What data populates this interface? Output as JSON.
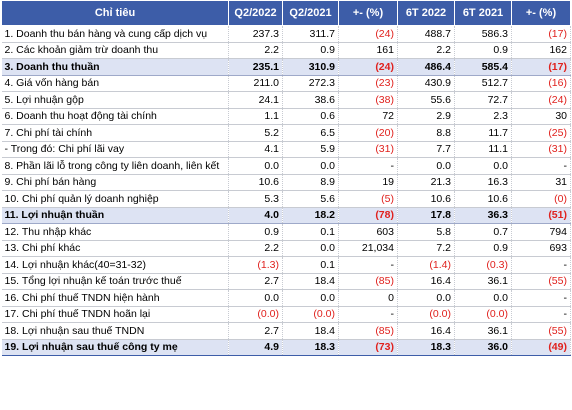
{
  "header": [
    "Chỉ tiêu",
    "Q2/2022",
    "Q2/2021",
    "+- (%)",
    "6T 2022",
    "6T 2021",
    "+- (%)"
  ],
  "rows": [
    {
      "label": "1. Doanh thu bán hàng và cung cấp dịch vụ",
      "v": [
        "237.3",
        "311.7",
        "(24)",
        "488.7",
        "586.3",
        "(17)"
      ],
      "hl": false
    },
    {
      "label": "2. Các khoản giảm trừ doanh thu",
      "v": [
        "2.2",
        "0.9",
        "161",
        "2.2",
        "0.9",
        "162"
      ],
      "hl": false
    },
    {
      "label": "3. Doanh thu thuần",
      "v": [
        "235.1",
        "310.9",
        "(24)",
        "486.4",
        "585.4",
        "(17)"
      ],
      "hl": true
    },
    {
      "label": "4. Giá vốn hàng bán",
      "v": [
        "211.0",
        "272.3",
        "(23)",
        "430.9",
        "512.7",
        "(16)"
      ],
      "hl": false
    },
    {
      "label": "5. Lợi nhuận gộp",
      "v": [
        "24.1",
        "38.6",
        "(38)",
        "55.6",
        "72.7",
        "(24)"
      ],
      "hl": false
    },
    {
      "label": "6. Doanh thu hoạt động tài chính",
      "v": [
        "1.1",
        "0.6",
        "72",
        "2.9",
        "2.3",
        "30"
      ],
      "hl": false
    },
    {
      "label": "7. Chi phí tài chính",
      "v": [
        "5.2",
        "6.5",
        "(20)",
        "8.8",
        "11.7",
        "(25)"
      ],
      "hl": false
    },
    {
      "label": "- Trong đó: Chi phí lãi vay",
      "v": [
        "4.1",
        "5.9",
        "(31)",
        "7.7",
        "11.1",
        "(31)"
      ],
      "hl": false
    },
    {
      "label": "8. Phần lãi lỗ trong công ty liên doanh, liên kết",
      "v": [
        "0.0",
        "0.0",
        "-",
        "0.0",
        "0.0",
        "-"
      ],
      "hl": false
    },
    {
      "label": "9. Chi phí bán hàng",
      "v": [
        "10.6",
        "8.9",
        "19",
        "21.3",
        "16.3",
        "31"
      ],
      "hl": false
    },
    {
      "label": "10. Chi phí quản lý doanh nghiệp",
      "v": [
        "5.3",
        "5.6",
        "(5)",
        "10.6",
        "10.6",
        "(0)"
      ],
      "hl": false
    },
    {
      "label": "11. Lợi nhuận thuần",
      "v": [
        "4.0",
        "18.2",
        "(78)",
        "17.8",
        "36.3",
        "(51)"
      ],
      "hl": true
    },
    {
      "label": "12. Thu nhập khác",
      "v": [
        "0.9",
        "0.1",
        "603",
        "5.8",
        "0.7",
        "794"
      ],
      "hl": false
    },
    {
      "label": "13. Chi phí khác",
      "v": [
        "2.2",
        "0.0",
        "21,034",
        "7.2",
        "0.9",
        "693"
      ],
      "hl": false
    },
    {
      "label": "14. Lợi nhuận khác(40=31-32)",
      "v": [
        "(1.3)",
        "0.1",
        "-",
        "(1.4)",
        "(0.3)",
        "-"
      ],
      "hl": false
    },
    {
      "label": "15. Tổng lợi nhuận kế toán trước thuế",
      "v": [
        "2.7",
        "18.4",
        "(85)",
        "16.4",
        "36.1",
        "(55)"
      ],
      "hl": false
    },
    {
      "label": "16. Chi phí thuế TNDN hiện hành",
      "v": [
        "0.0",
        "0.0",
        "0",
        "0.0",
        "0.0",
        "-"
      ],
      "hl": false
    },
    {
      "label": "17. Chi phí thuế TNDN hoãn lại",
      "v": [
        "(0.0)",
        "(0.0)",
        "-",
        "(0.0)",
        "(0.0)",
        "-"
      ],
      "hl": false
    },
    {
      "label": "18. Lợi nhuận sau thuế TNDN",
      "v": [
        "2.7",
        "18.4",
        "(85)",
        "16.4",
        "36.1",
        "(55)"
      ],
      "hl": false
    },
    {
      "label": "19. Lợi nhuận sau thuế công ty mẹ",
      "v": [
        "4.9",
        "18.3",
        "(73)",
        "18.3",
        "36.0",
        "(49)"
      ],
      "hl": true
    }
  ]
}
